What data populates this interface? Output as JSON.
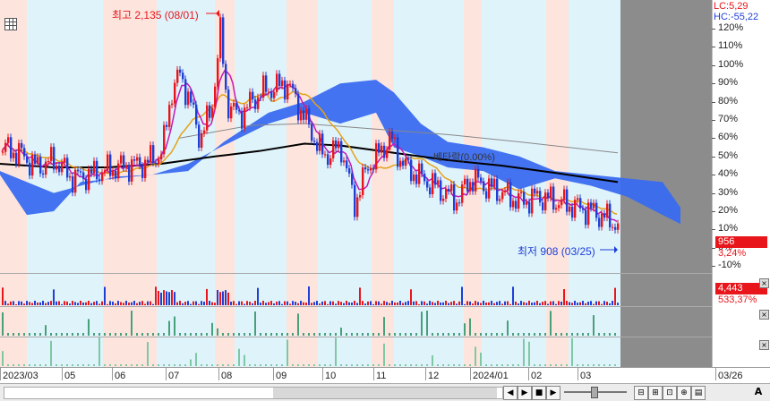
{
  "title_icon": "grid-settings-icon",
  "annotations": {
    "high_label": "최고 2,135 (08/01)",
    "low_label": "최저 908 (03/25)",
    "mid_label": "베타락(0.00%)"
  },
  "legend": {
    "lc": "LC:5,29",
    "hc": "HC:-55,22"
  },
  "price_axis": [
    "120%",
    "110%",
    "100%",
    "90%",
    "80%",
    "70%",
    "60%",
    "50%",
    "40%",
    "30%",
    "20%",
    "10%",
    "0%",
    "-10%"
  ],
  "current_price": {
    "value": "956",
    "change": "3,24%"
  },
  "volume": {
    "value": "4,443",
    "change": "533,37%"
  },
  "dates": [
    "2023/03",
    "05",
    "06",
    "07",
    "08",
    "09",
    "10",
    "11",
    "12",
    "2024/01",
    "02",
    "03",
    "03/26"
  ],
  "toolbar": {
    "chart_type_label": "A"
  },
  "colors": {
    "candle_up": "#e8161b",
    "candle_down": "#1e3fd6",
    "cloud": "#3a6cf0",
    "ma_long": "#000000",
    "ma_mid": "#e6a21a",
    "ma_short": "#c21ab5"
  },
  "chart_data": {
    "type": "line",
    "ylabel": "",
    "ylim": [
      -10,
      125
    ],
    "x": [
      "2023/03",
      "05",
      "06",
      "07",
      "08",
      "09",
      "10",
      "11",
      "12",
      "2024/01",
      "02",
      "03",
      "03/26"
    ],
    "series": [
      {
        "values": [
          48,
          44,
          38,
          45,
          95,
          78,
          62,
          55,
          40,
          30,
          32,
          25,
          16
        ]
      }
    ]
  }
}
